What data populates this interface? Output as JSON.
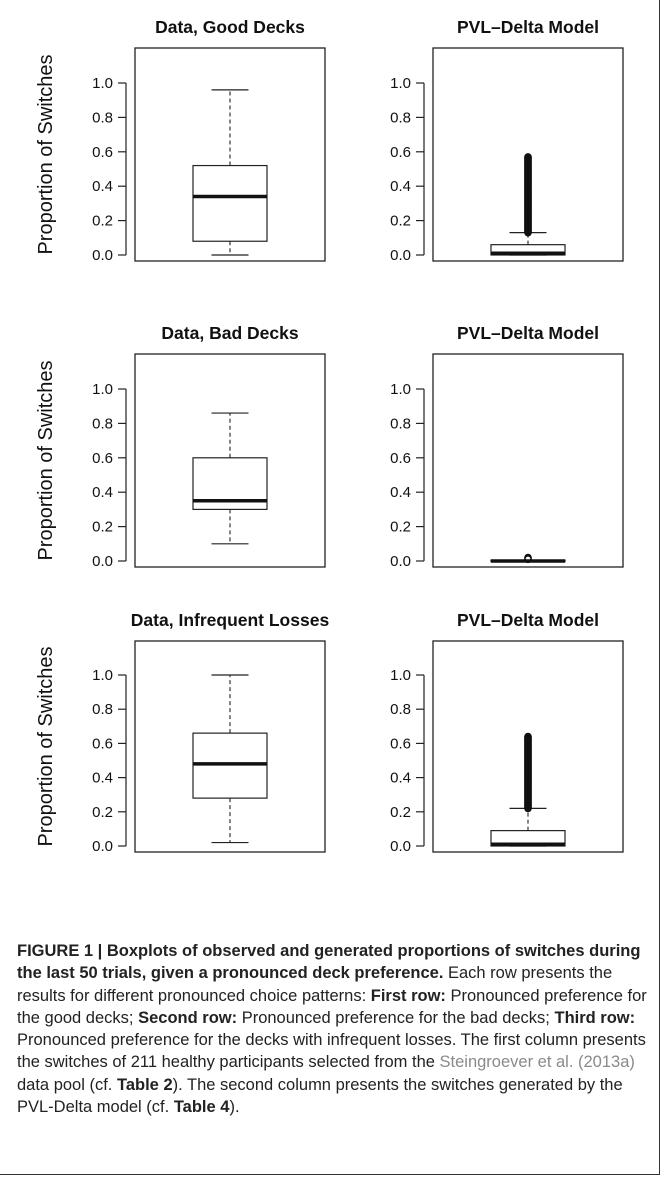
{
  "chart_data": [
    {
      "type": "boxplot",
      "title": "Data, Good Decks",
      "ylabel": "Proportion of Switches",
      "ylim": [
        0,
        1
      ],
      "yticks": [
        "0.0",
        "0.2",
        "0.4",
        "0.6",
        "0.8",
        "1.0"
      ],
      "box": {
        "min": 0.0,
        "q1": 0.08,
        "median": 0.34,
        "q3": 0.52,
        "max": 0.96
      },
      "outliers": null
    },
    {
      "type": "boxplot",
      "title": "PVL–Delta Model",
      "ylabel": "",
      "ylim": [
        0,
        1
      ],
      "yticks": [
        "0.0",
        "0.2",
        "0.4",
        "0.6",
        "0.8",
        "1.0"
      ],
      "box": {
        "min": 0.0,
        "q1": 0.0,
        "median": 0.01,
        "q3": 0.06,
        "max": 0.13
      },
      "outliers": {
        "from": 0.13,
        "to": 0.57
      }
    },
    {
      "type": "boxplot",
      "title": "Data, Bad Decks",
      "ylabel": "Proportion of Switches",
      "ylim": [
        0,
        1
      ],
      "yticks": [
        "0.0",
        "0.2",
        "0.4",
        "0.6",
        "0.8",
        "1.0"
      ],
      "box": {
        "min": 0.1,
        "q1": 0.3,
        "median": 0.35,
        "q3": 0.6,
        "max": 0.86
      },
      "outliers": null
    },
    {
      "type": "boxplot",
      "title": "PVL–Delta Model",
      "ylabel": "",
      "ylim": [
        0,
        1
      ],
      "yticks": [
        "0.0",
        "0.2",
        "0.4",
        "0.6",
        "0.8",
        "1.0"
      ],
      "box": {
        "min": 0.0,
        "q1": 0.0,
        "median": 0.0,
        "q3": 0.005,
        "max": 0.005
      },
      "outliers": {
        "from": 0.01,
        "to": 0.02
      }
    },
    {
      "type": "boxplot",
      "title": "Data, Infrequent Losses",
      "ylabel": "Proportion of Switches",
      "ylim": [
        0,
        1
      ],
      "yticks": [
        "0.0",
        "0.2",
        "0.4",
        "0.6",
        "0.8",
        "1.0"
      ],
      "box": {
        "min": 0.02,
        "q1": 0.28,
        "median": 0.48,
        "q3": 0.66,
        "max": 1.0
      },
      "outliers": null
    },
    {
      "type": "boxplot",
      "title": "PVL–Delta Model",
      "ylabel": "",
      "ylim": [
        0,
        1
      ],
      "yticks": [
        "0.0",
        "0.2",
        "0.4",
        "0.6",
        "0.8",
        "1.0"
      ],
      "box": {
        "min": 0.0,
        "q1": 0.0,
        "median": 0.01,
        "q3": 0.09,
        "max": 0.22
      },
      "outliers": {
        "from": 0.22,
        "to": 0.64
      }
    }
  ],
  "caption": {
    "title": "FIGURE 1 | Boxplots of observed and generated proportions of switches during the last 50 trials, given a pronounced deck preference.",
    "s1": " Each row presents the results for different pronounced choice patterns: ",
    "b1": "First row:",
    "s2": " Pronounced preference for the good decks; ",
    "b2": "Second row:",
    "s3": " Pronounced preference for the bad decks; ",
    "b3": "Third row:",
    "s4": " Pronounced preference for the decks with infrequent losses. The first column presents the switches of 211 healthy participants selected from the ",
    "ref": "Steingroever et al. (2013a)",
    "s5": " data pool (cf. ",
    "b4": "Table 2",
    "s6": "). The second column presents the switches generated by the PVL-Delta model (cf. ",
    "b5": "Table 4",
    "s7": ")."
  }
}
